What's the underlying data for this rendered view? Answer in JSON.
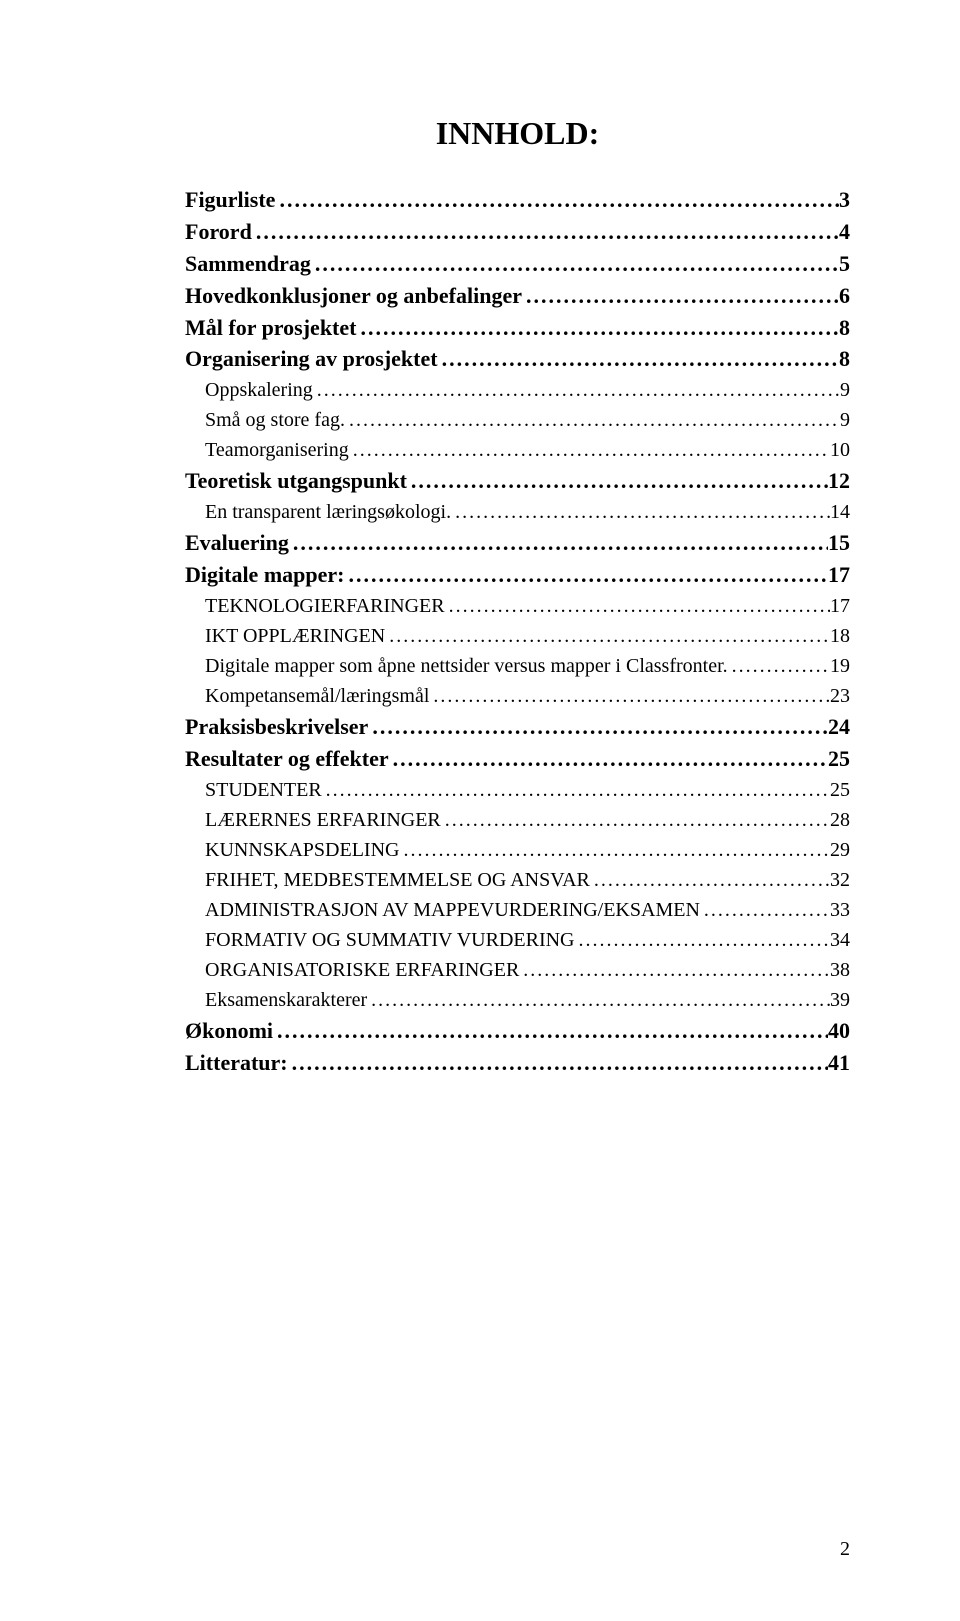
{
  "title": "INNHOLD:",
  "page_number": "2",
  "entries": [
    {
      "label": "Figurliste",
      "page": "3",
      "level": 1
    },
    {
      "label": "Forord",
      "page": "4",
      "level": 1
    },
    {
      "label": "Sammendrag",
      "page": "5",
      "level": 1
    },
    {
      "label": "Hovedkonklusjoner og anbefalinger",
      "page": "6",
      "level": 1
    },
    {
      "label": "Mål for prosjektet",
      "page": "8",
      "level": 1
    },
    {
      "label": "Organisering av prosjektet",
      "page": "8",
      "level": 1
    },
    {
      "label": "Oppskalering",
      "page": "9",
      "level": 2
    },
    {
      "label": "Små og store fag.",
      "page": "9",
      "level": 2
    },
    {
      "label": "Teamorganisering",
      "page": "10",
      "level": 2
    },
    {
      "label": "Teoretisk utgangspunkt",
      "page": "12",
      "level": 1
    },
    {
      "label": "En transparent læringsøkologi.",
      "page": "14",
      "level": 2
    },
    {
      "label": "Evaluering",
      "page": "15",
      "level": 1
    },
    {
      "label": "Digitale mapper:",
      "page": "17",
      "level": 1
    },
    {
      "label": "TEKNOLOGIERFARINGER",
      "page": "17",
      "level": 2
    },
    {
      "label": "IKT OPPLÆRINGEN",
      "page": "18",
      "level": 2
    },
    {
      "label": "Digitale mapper som åpne nettsider versus mapper i Classfronter.",
      "page": "19",
      "level": 2
    },
    {
      "label": "Kompetansemål/læringsmål",
      "page": "23",
      "level": 2
    },
    {
      "label": "Praksisbeskrivelser",
      "page": "24",
      "level": 1
    },
    {
      "label": "Resultater og effekter",
      "page": "25",
      "level": 1
    },
    {
      "label": "STUDENTER",
      "page": "25",
      "level": 2
    },
    {
      "label": "LÆRERNES ERFARINGER",
      "page": "28",
      "level": 2
    },
    {
      "label": "KUNNSKAPSDELING",
      "page": "29",
      "level": 2
    },
    {
      "label": "FRIHET, MEDBESTEMMELSE OG ANSVAR",
      "page": "32",
      "level": 2
    },
    {
      "label": "ADMINISTRASJON AV MAPPEVURDERING/EKSAMEN",
      "page": "33",
      "level": 2
    },
    {
      "label": "FORMATIV OG SUMMATIV VURDERING",
      "page": "34",
      "level": 2
    },
    {
      "label": "ORGANISATORISKE ERFARINGER",
      "page": "38",
      "level": 2
    },
    {
      "label": "Eksamenskarakterer",
      "page": "39",
      "level": 2
    },
    {
      "label": "Økonomi",
      "page": "40",
      "level": 1
    },
    {
      "label": "Litteratur:",
      "page": "41",
      "level": 1
    }
  ]
}
